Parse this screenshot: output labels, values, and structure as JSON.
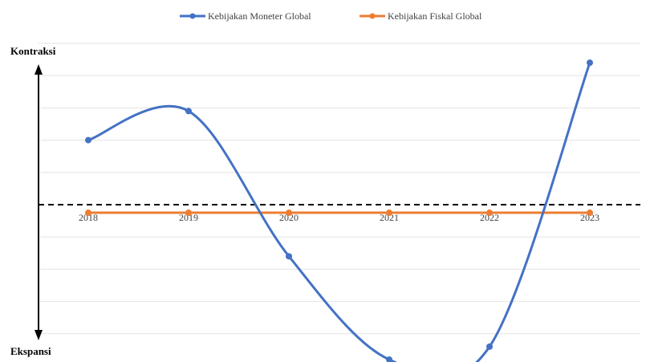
{
  "chart_data": {
    "type": "line",
    "categories": [
      "2018",
      "2019",
      "2020",
      "2021",
      "2022",
      "2023"
    ],
    "series": [
      {
        "name": "Kebijakan Moneter Global",
        "color": "#4472C4",
        "values": [
          2.0,
          2.9,
          -1.6,
          -4.8,
          -4.4,
          4.4
        ]
      },
      {
        "name": "Kebijakan Fiskal Global",
        "color": "#ED7D31",
        "values": [
          -0.25,
          -0.25,
          -0.25,
          -0.25,
          -0.25,
          -0.25
        ]
      }
    ],
    "ylim": [
      -4,
      5
    ],
    "grid": true,
    "legend": "top-center",
    "zero_line": "dashed",
    "axis_labels": {
      "top": "Kontraksi",
      "bottom": "Ekspansi"
    }
  }
}
